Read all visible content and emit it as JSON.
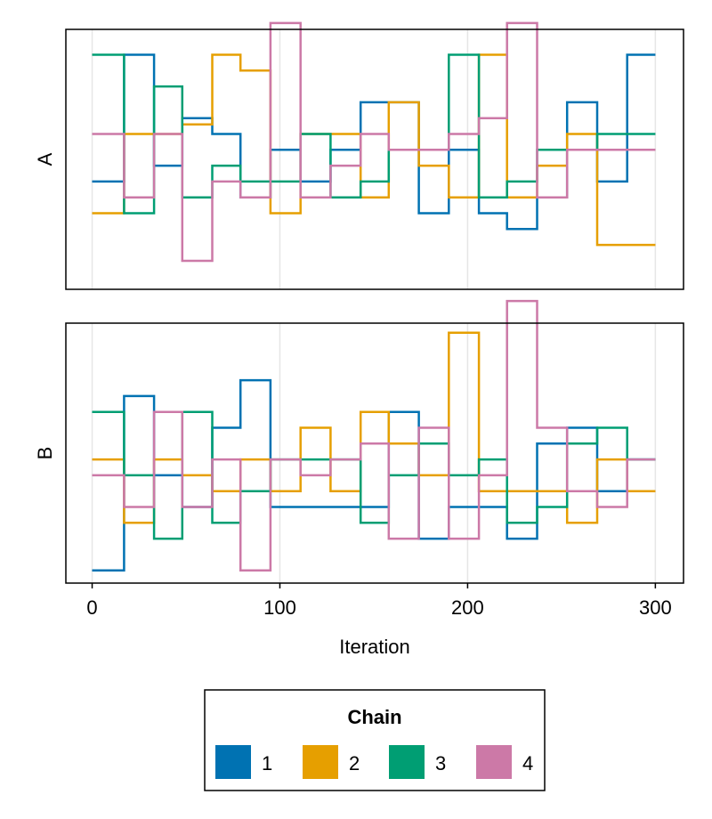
{
  "chart_data": {
    "type": "line",
    "subtype": "step trace plot",
    "xlabel": "Iteration",
    "x_ticks": [
      0,
      100,
      200,
      300
    ],
    "xlim": [
      -14,
      315
    ],
    "grid": "vertical at x ticks",
    "panels": [
      {
        "ylabel": "A",
        "ylim": [
          -0.4,
          7.8
        ],
        "steps_x": [
          0,
          17,
          33,
          48,
          64,
          79,
          95,
          111,
          127,
          143,
          158,
          174,
          190,
          206,
          221,
          237,
          253,
          269,
          285,
          300
        ],
        "series": [
          {
            "name": "1",
            "values": [
              3.0,
              7.0,
              3.5,
              5.0,
              4.5,
              2.5,
              4.0,
              3.0,
              4.0,
              5.5,
              5.5,
              2.0,
              4.0,
              2.0,
              1.5,
              2.5,
              5.5,
              3.0,
              7.0
            ]
          },
          {
            "name": "2",
            "values": [
              2.0,
              4.5,
              4.5,
              4.8,
              7.0,
              6.5,
              2.0,
              4.5,
              4.5,
              2.5,
              5.5,
              3.5,
              2.5,
              7.0,
              2.5,
              3.5,
              4.5,
              1.0,
              1.0
            ]
          },
          {
            "name": "3",
            "values": [
              7.0,
              2.0,
              6.0,
              2.5,
              3.5,
              3.0,
              3.0,
              4.5,
              2.5,
              3.0,
              4.0,
              4.0,
              7.0,
              2.5,
              3.0,
              4.0,
              4.0,
              4.5,
              4.5
            ]
          },
          {
            "name": "4",
            "values": [
              4.5,
              2.5,
              4.5,
              0.5,
              3.0,
              2.5,
              8.0,
              2.5,
              3.5,
              4.5,
              4.0,
              4.0,
              4.5,
              5.0,
              8.0,
              2.5,
              4.0,
              4.0,
              4.0
            ]
          }
        ]
      },
      {
        "ylabel": "B",
        "ylim": [
          -0.4,
          7.8
        ],
        "steps_x": [
          0,
          17,
          33,
          48,
          64,
          79,
          95,
          111,
          127,
          143,
          158,
          174,
          190,
          206,
          221,
          237,
          253,
          269,
          285,
          300
        ],
        "series": [
          {
            "name": "1",
            "values": [
              0.0,
              5.5,
              3.0,
              2.0,
              4.5,
              6.0,
              2.0,
              2.0,
              2.0,
              2.0,
              5.0,
              1.0,
              2.0,
              2.0,
              1.0,
              4.0,
              4.5,
              2.5,
              3.5
            ]
          },
          {
            "name": "2",
            "values": [
              3.5,
              1.5,
              3.5,
              3.0,
              2.5,
              3.5,
              2.5,
              4.5,
              2.5,
              5.0,
              4.0,
              3.0,
              7.5,
              2.5,
              2.5,
              2.5,
              1.5,
              3.5,
              2.5
            ]
          },
          {
            "name": "3",
            "values": [
              5.0,
              3.0,
              1.0,
              5.0,
              1.5,
              2.5,
              3.5,
              3.5,
              3.5,
              1.5,
              3.0,
              4.0,
              3.0,
              3.5,
              1.5,
              2.0,
              4.0,
              4.5,
              3.5
            ]
          },
          {
            "name": "4",
            "values": [
              3.0,
              2.0,
              5.0,
              2.0,
              3.5,
              0.0,
              3.5,
              3.0,
              3.5,
              4.0,
              1.0,
              4.5,
              1.0,
              3.0,
              8.5,
              4.5,
              2.5,
              2.0,
              3.5
            ]
          }
        ]
      }
    ],
    "legend": {
      "title": "Chain",
      "placement": "bottom-center",
      "entries": [
        "1",
        "2",
        "3",
        "4"
      ]
    }
  },
  "colors": {
    "series": [
      "#0072b2",
      "#e69f00",
      "#009e73",
      "#cc79a7"
    ],
    "grid": "#e6e6e6",
    "frame": "#000000"
  }
}
